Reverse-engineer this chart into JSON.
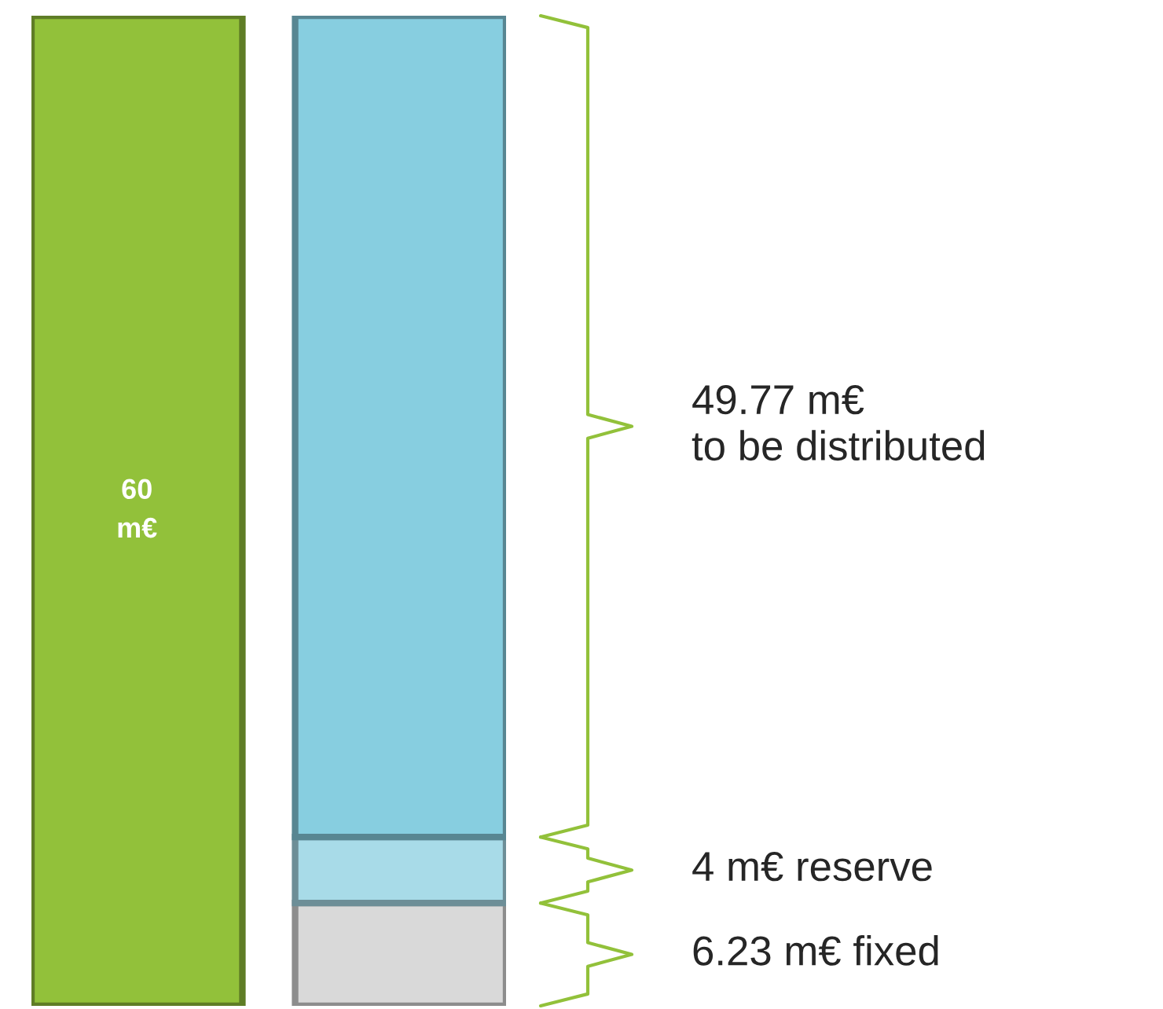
{
  "chart_data": {
    "type": "bar",
    "stacked": true,
    "categories": [
      null,
      null
    ],
    "series": [
      {
        "color": "#92c13a",
        "colors": [
          "#92c13a",
          "#d9d9d9"
        ],
        "values": [
          60,
          6.23
        ],
        "value_labels": [
          "60\nm€",
          null
        ]
      },
      {
        "color": "#a8dbe8",
        "values": [
          null,
          4
        ]
      },
      {
        "color": "#87cee0",
        "values": [
          null,
          49.77
        ]
      }
    ],
    "annotations": [
      "49.77 m€\nto be distributed",
      "4 m€ reserve",
      "6.23 m€ fixed"
    ],
    "grid": false,
    "legend": false
  }
}
